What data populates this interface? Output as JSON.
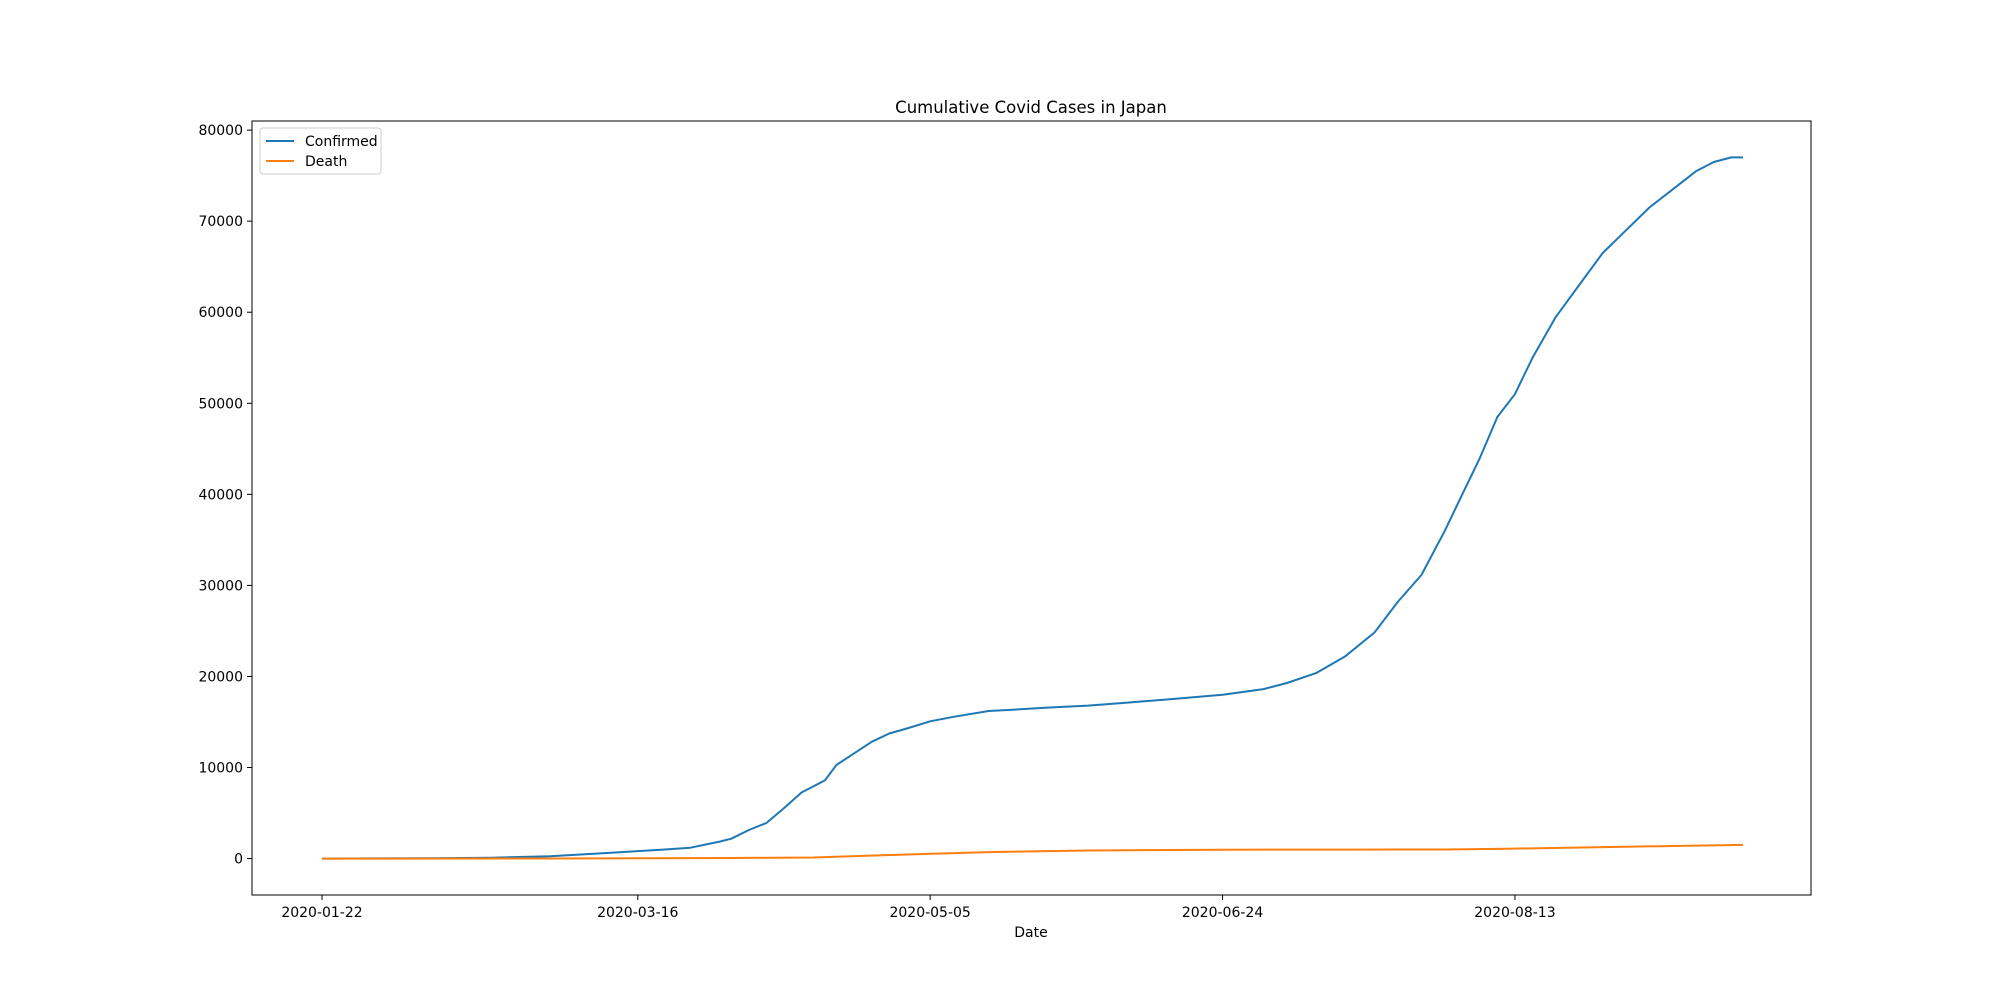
{
  "chart_data": {
    "type": "line",
    "title": "Cumulative Covid Cases in Japan",
    "xlabel": "Date",
    "ylabel": "",
    "x_range": [
      "2020-01-22",
      "2020-09-21"
    ],
    "ylim": [
      -4000,
      81000
    ],
    "x_ticks": [
      "2020-01-22",
      "2020-03-16",
      "2020-05-05",
      "2020-06-24",
      "2020-08-13"
    ],
    "y_ticks": [
      0,
      10000,
      20000,
      30000,
      40000,
      50000,
      60000,
      70000,
      80000
    ],
    "grid": false,
    "legend": "top-left",
    "series": [
      {
        "name": "Confirmed",
        "color": "#1f77b4",
        "points": [
          [
            "2020-01-22",
            2
          ],
          [
            "2020-02-01",
            20
          ],
          [
            "2020-02-10",
            26
          ],
          [
            "2020-02-20",
            94
          ],
          [
            "2020-03-01",
            256
          ],
          [
            "2020-03-10",
            581
          ],
          [
            "2020-03-16",
            825
          ],
          [
            "2020-03-20",
            963
          ],
          [
            "2020-03-25",
            1193
          ],
          [
            "2020-03-30",
            1866
          ],
          [
            "2020-04-01",
            2178
          ],
          [
            "2020-04-04",
            3139
          ],
          [
            "2020-04-07",
            3906
          ],
          [
            "2020-04-10",
            5548
          ],
          [
            "2020-04-13",
            7255
          ],
          [
            "2020-04-17",
            8582
          ],
          [
            "2020-04-19",
            10296
          ],
          [
            "2020-04-21",
            11135
          ],
          [
            "2020-04-25",
            12829
          ],
          [
            "2020-04-28",
            13736
          ],
          [
            "2020-05-01",
            14281
          ],
          [
            "2020-05-05",
            15078
          ],
          [
            "2020-05-09",
            15575
          ],
          [
            "2020-05-15",
            16203
          ],
          [
            "2020-05-20",
            16385
          ],
          [
            "2020-05-25",
            16581
          ],
          [
            "2020-06-01",
            16804
          ],
          [
            "2020-06-08",
            17141
          ],
          [
            "2020-06-15",
            17502
          ],
          [
            "2020-06-24",
            18000
          ],
          [
            "2020-07-01",
            18617
          ],
          [
            "2020-07-05",
            19282
          ],
          [
            "2020-07-10",
            20371
          ],
          [
            "2020-07-15",
            22220
          ],
          [
            "2020-07-20",
            24837
          ],
          [
            "2020-07-24",
            28226
          ],
          [
            "2020-07-28",
            31142
          ],
          [
            "2020-08-01",
            36000
          ],
          [
            "2020-08-04",
            40000
          ],
          [
            "2020-08-07",
            44000
          ],
          [
            "2020-08-10",
            48500
          ],
          [
            "2020-08-13",
            51000
          ],
          [
            "2020-08-16",
            55000
          ],
          [
            "2020-08-20",
            59500
          ],
          [
            "2020-08-24",
            63000
          ],
          [
            "2020-08-28",
            66500
          ],
          [
            "2020-09-01",
            69000
          ],
          [
            "2020-09-05",
            71500
          ],
          [
            "2020-09-09",
            73500
          ],
          [
            "2020-09-13",
            75500
          ],
          [
            "2020-09-16",
            76500
          ],
          [
            "2020-09-19",
            77000
          ],
          [
            "2020-09-21",
            77000
          ]
        ]
      },
      {
        "name": "Death",
        "color": "#ff7f0e",
        "points": [
          [
            "2020-01-22",
            0
          ],
          [
            "2020-03-01",
            6
          ],
          [
            "2020-03-16",
            28
          ],
          [
            "2020-04-01",
            66
          ],
          [
            "2020-04-15",
            120
          ],
          [
            "2020-05-01",
            450
          ],
          [
            "2020-05-15",
            710
          ],
          [
            "2020-06-01",
            890
          ],
          [
            "2020-06-24",
            970
          ],
          [
            "2020-07-15",
            985
          ],
          [
            "2020-08-01",
            1000
          ],
          [
            "2020-08-13",
            1100
          ],
          [
            "2020-09-01",
            1300
          ],
          [
            "2020-09-21",
            1500
          ]
        ]
      }
    ]
  }
}
